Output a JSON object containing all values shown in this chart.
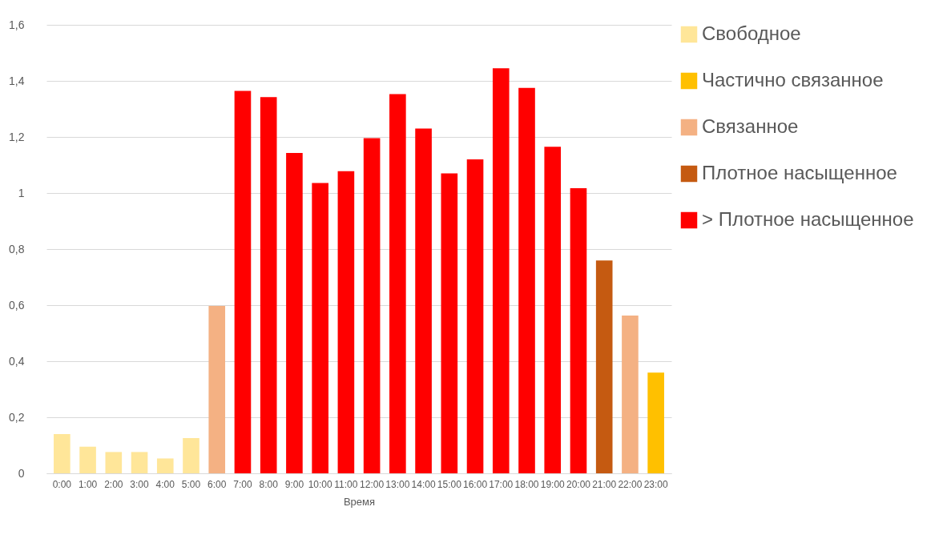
{
  "chart_data": {
    "type": "bar",
    "xlabel": "Время",
    "categories": [
      "0:00",
      "1:00",
      "2:00",
      "3:00",
      "4:00",
      "5:00",
      "6:00",
      "7:00",
      "8:00",
      "9:00",
      "10:00",
      "11:00",
      "12:00",
      "13:00",
      "14:00",
      "15:00",
      "16:00",
      "17:00",
      "18:00",
      "19:00",
      "20:00",
      "21:00",
      "22:00",
      "23:00"
    ],
    "series": [
      {
        "name": "Свободное",
        "color": "#ffe699",
        "values": [
          0.14,
          0.095,
          0.076,
          0.076,
          0.053,
          0.126,
          null,
          null,
          null,
          null,
          null,
          null,
          null,
          null,
          null,
          null,
          null,
          null,
          null,
          null,
          null,
          null,
          null,
          null
        ]
      },
      {
        "name": "Частично связанное",
        "color": "#ffc000",
        "values": [
          null,
          null,
          null,
          null,
          null,
          null,
          null,
          null,
          null,
          null,
          null,
          null,
          null,
          null,
          null,
          null,
          null,
          null,
          null,
          null,
          null,
          null,
          null,
          0.359
        ]
      },
      {
        "name": "Связанное",
        "color": "#f4b183",
        "values": [
          null,
          null,
          null,
          null,
          null,
          null,
          0.597,
          null,
          null,
          null,
          null,
          null,
          null,
          null,
          null,
          null,
          null,
          null,
          null,
          null,
          null,
          null,
          0.563,
          null
        ]
      },
      {
        "name": "Плотное насыщенное",
        "color": "#c55a11",
        "values": [
          null,
          null,
          null,
          null,
          null,
          null,
          null,
          null,
          null,
          null,
          null,
          null,
          null,
          null,
          null,
          null,
          null,
          null,
          null,
          null,
          null,
          0.759,
          null,
          null
        ]
      },
      {
        "name": "> Плотное насыщенное",
        "color": "#ff0000",
        "values": [
          null,
          null,
          null,
          null,
          null,
          null,
          null,
          1.364,
          1.342,
          1.143,
          1.036,
          1.078,
          1.196,
          1.353,
          1.23,
          1.07,
          1.12,
          1.445,
          1.375,
          1.165,
          1.017,
          null,
          null,
          null
        ]
      }
    ],
    "ylim": [
      0,
      1.6
    ],
    "yticks": [
      0,
      {
        "value": 0.2,
        "label": "0,2"
      },
      {
        "value": 0.4,
        "label": "0,4"
      },
      {
        "value": 0.6,
        "label": "0,6"
      },
      {
        "value": 0.8,
        "label": "0,8"
      },
      1,
      {
        "value": 1.2,
        "label": "1,2"
      },
      {
        "value": 1.4,
        "label": "1,4"
      },
      {
        "value": 1.6,
        "label": "1,6"
      }
    ],
    "grid": "y",
    "legend": "top right"
  }
}
